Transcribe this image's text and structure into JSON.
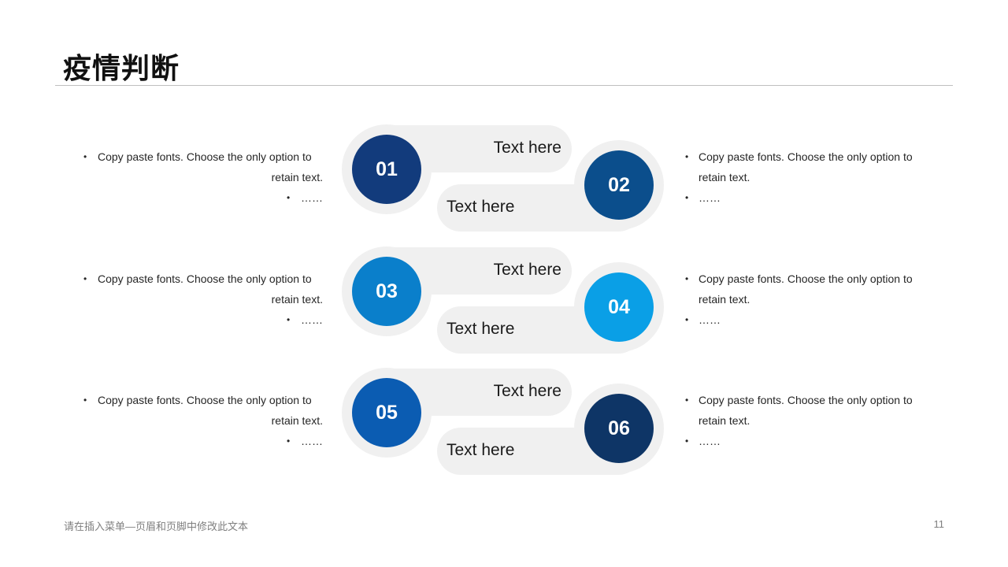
{
  "title": "疫情判断",
  "footer": "请在插入菜单—页眉和页脚中修改此文本",
  "page_number": "11",
  "rows": [
    {
      "left": {
        "number": "01",
        "color": "#123b7c",
        "pill_text": "Text here",
        "desc_first": "Copy paste fonts. Choose the only option to",
        "desc_cont": "retain text.",
        "desc_dots": "……"
      },
      "right": {
        "number": "02",
        "color": "#0b4e8c",
        "pill_text": "Text here",
        "desc_first": "Copy paste fonts. Choose the only option to",
        "desc_cont": "retain text.",
        "desc_dots": "……"
      }
    },
    {
      "left": {
        "number": "03",
        "color": "#0a7fcb",
        "pill_text": "Text here",
        "desc_first": "Copy paste fonts. Choose the only option to",
        "desc_cont": "retain text.",
        "desc_dots": "……"
      },
      "right": {
        "number": "04",
        "color": "#0a9fe6",
        "pill_text": "Text here",
        "desc_first": "Copy paste fonts. Choose the only option to",
        "desc_cont": "retain text.",
        "desc_dots": "……"
      }
    },
    {
      "left": {
        "number": "05",
        "color": "#0b5cb2",
        "pill_text": "Text here",
        "desc_first": "Copy paste fonts. Choose the only option to",
        "desc_cont": "retain text.",
        "desc_dots": "……"
      },
      "right": {
        "number": "06",
        "color": "#0e3566",
        "pill_text": "Text here",
        "desc_first": "Copy paste fonts. Choose the only option to",
        "desc_cont": "retain text.",
        "desc_dots": "……"
      }
    }
  ]
}
